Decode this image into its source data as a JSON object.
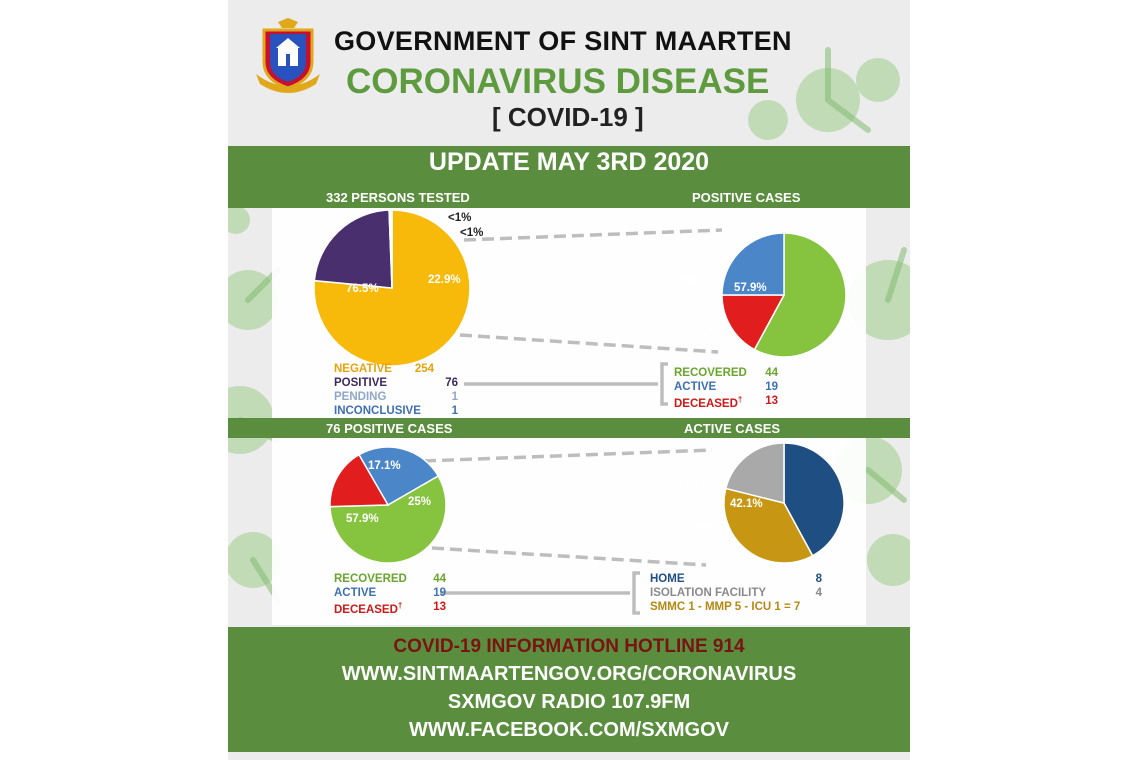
{
  "header": {
    "government": "GOVERNMENT OF SINT MAARTEN",
    "disease": "CORONAVIRUS DISEASE",
    "covid_id": "[ COVID-19 ]"
  },
  "update_title": "UPDATE MAY 3RD 2020",
  "colors": {
    "band_green": "#5a8e3e",
    "negative": "#f7b90a",
    "positive": "#4a2f6e",
    "pending": "#8fa7c9",
    "inconclusive": "#3d6fb4",
    "recovered": "#86c440",
    "active": "#4a86c8",
    "deceased": "#e21d1d",
    "home": "#1f4e82",
    "isolation": "#a9a9a9",
    "smmc": "#c79612"
  },
  "chart_data": [
    {
      "type": "pie",
      "title": "332 PERSONS TESTED",
      "slices": [
        {
          "name": "NEGATIVE",
          "value": 76.5,
          "label": "76.5%",
          "count": "254",
          "color": "#f7b90a"
        },
        {
          "name": "POSITIVE",
          "value": 22.9,
          "label": "22.9%",
          "count": "76",
          "color": "#4a2f6e"
        },
        {
          "name": "PENDING",
          "value": 0.3,
          "label": "<1%",
          "count": "1",
          "color": "#8fa7c9"
        },
        {
          "name": "INCONCLUSIVE",
          "value": 0.3,
          "label": "<1%",
          "count": "1",
          "color": "#3d6fb4"
        }
      ]
    },
    {
      "type": "pie",
      "title": "POSITIVE CASES",
      "slices": [
        {
          "name": "RECOVERED",
          "value": 57.9,
          "label": "57.9%",
          "count": "44",
          "color": "#86c440"
        },
        {
          "name": "DECEASED",
          "value": 17.1,
          "label": "17.1%",
          "count": "13",
          "color": "#e21d1d"
        },
        {
          "name": "ACTIVE",
          "value": 25,
          "label": "25%",
          "count": "19",
          "color": "#4a86c8"
        }
      ]
    },
    {
      "type": "pie",
      "title": "76 POSITIVE CASES",
      "slices": [
        {
          "name": "ACTIVE",
          "value": 25,
          "label": "25%",
          "count": "19",
          "color": "#4a86c8"
        },
        {
          "name": "RECOVERED",
          "value": 57.9,
          "label": "57.9%",
          "count": "44",
          "color": "#86c440"
        },
        {
          "name": "DECEASED",
          "value": 17.1,
          "label": "17.1%",
          "count": "13",
          "color": "#e21d1d"
        }
      ]
    },
    {
      "type": "pie",
      "title": "ACTIVE CASES",
      "slices": [
        {
          "name": "HOME",
          "value": 42.1,
          "label": "42.1%",
          "count": "8",
          "color": "#1f4e82"
        },
        {
          "name": "SMMC 1 - MMP 5 - ICU 1 = 7",
          "value": 36.8,
          "label": "36.8%",
          "count": "",
          "color": "#c79612"
        },
        {
          "name": "ISOLATION FACILITY",
          "value": 21.1,
          "label": "21.1%",
          "count": "4",
          "color": "#a9a9a9"
        }
      ]
    }
  ],
  "legends": {
    "tested": [
      {
        "name": "NEGATIVE",
        "count": "254",
        "color": "#e8a20a"
      },
      {
        "name": "POSITIVE",
        "count": "76",
        "color": "#3c2a5e"
      },
      {
        "name": "PENDING",
        "count": "1",
        "color": "#8fa7c9"
      },
      {
        "name": "INCONCLUSIVE",
        "count": "1",
        "color": "#3d6fb4"
      }
    ],
    "positive_right": [
      {
        "name": "RECOVERED",
        "count": "44",
        "color": "#6aa62e"
      },
      {
        "name": "ACTIVE",
        "count": "19",
        "color": "#3d6fb4"
      },
      {
        "name": "DECEASED",
        "count": "13",
        "color": "#d01818",
        "dagger": "†"
      }
    ],
    "positive_left": [
      {
        "name": "RECOVERED",
        "count": "44",
        "color": "#6aa62e"
      },
      {
        "name": "ACTIVE",
        "count": "19",
        "color": "#3d6fb4"
      },
      {
        "name": "DECEASED",
        "count": "13",
        "color": "#d01818",
        "dagger": "†"
      }
    ],
    "active": [
      {
        "name": "HOME",
        "count": "8",
        "color": "#1f4e82"
      },
      {
        "name": "ISOLATION FACILITY",
        "count": "4",
        "color": "#8a8a8a"
      },
      {
        "name": "SMMC 1 - MMP 5 - ICU 1 = 7",
        "count": "",
        "color": "#b68812"
      }
    ]
  },
  "footer": {
    "hotline": "COVID-19 INFORMATION HOTLINE 914",
    "website": "WWW.SINTMAARTENGOV.ORG/CORONAVIRUS",
    "radio": "SXMGOV RADIO 107.9FM",
    "facebook": "WWW.FACEBOOK.COM/SXMGOV"
  }
}
